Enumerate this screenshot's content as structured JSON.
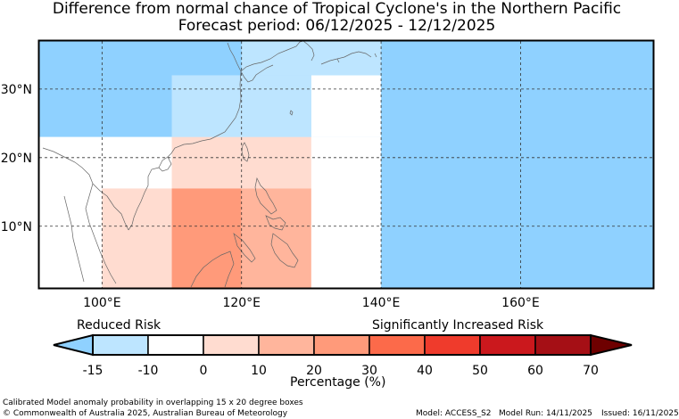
{
  "title": {
    "line1": "Difference from normal chance of Tropical Cyclone's in the Northern Pacific",
    "line2": "Forecast period: 06/12/2025 - 12/12/2025"
  },
  "map": {
    "lon_range": [
      91,
      179
    ],
    "lat_range": [
      1,
      37
    ],
    "lon_ticks": [
      {
        "lon": 100,
        "label": "100°E"
      },
      {
        "lon": 120,
        "label": "120°E"
      },
      {
        "lon": 140,
        "label": "140°E"
      },
      {
        "lon": 160,
        "label": "160°E"
      }
    ],
    "lat_ticks": [
      {
        "lat": 10,
        "label": "10°N"
      },
      {
        "lat": 20,
        "label": "20°N"
      },
      {
        "lat": 30,
        "label": "30°N"
      }
    ],
    "ocean_color": "#ffffff",
    "boxes": [
      {
        "lon": [
          91,
          140
        ],
        "lat": [
          23,
          37
        ],
        "color": "#8fd1ff"
      },
      {
        "lon": [
          91,
          110
        ],
        "lat": [
          1,
          23
        ],
        "color": "#ffffff"
      },
      {
        "lon": [
          110,
          130
        ],
        "lat": [
          23,
          32
        ],
        "color": "#bde5ff"
      },
      {
        "lon": [
          130,
          140
        ],
        "lat": [
          23,
          32
        ],
        "color": "#ffffff"
      },
      {
        "lon": [
          120,
          140
        ],
        "lat": [
          32,
          37
        ],
        "color": "#bde5ff"
      },
      {
        "lon": [
          100,
          110
        ],
        "lat": [
          1,
          15.5
        ],
        "color": "#ffdcd0"
      },
      {
        "lon": [
          110,
          130
        ],
        "lat": [
          15.5,
          23
        ],
        "color": "#ffdcd0"
      },
      {
        "lon": [
          110,
          120
        ],
        "lat": [
          1,
          15.5
        ],
        "color": "#ff9a7a"
      },
      {
        "lon": [
          120,
          130
        ],
        "lat": [
          1,
          15.5
        ],
        "color": "#ffb59c"
      },
      {
        "lon": [
          130,
          140
        ],
        "lat": [
          1,
          23
        ],
        "color": "#ffffff"
      },
      {
        "lon": [
          140,
          179
        ],
        "lat": [
          1,
          37
        ],
        "color": "#8fd1ff"
      }
    ]
  },
  "colorbar": {
    "left_label": "Reduced Risk",
    "right_label": "Significantly Increased Risk",
    "xlabel": "Percentage (%)",
    "ticks": [
      "-15",
      "-10",
      "0",
      "10",
      "20",
      "30",
      "40",
      "50",
      "60",
      "70"
    ],
    "low_extend_color": "#8fd1ff",
    "high_extend_color": "#6e0000",
    "bins": [
      "#bde5ff",
      "#ffffff",
      "#ffdcd0",
      "#ffb59c",
      "#ff9a7a",
      "#fc6a4a",
      "#ef3b2c",
      "#cb181d",
      "#a50f15"
    ]
  },
  "footer": {
    "line1": "Calibrated Model anomaly probability in overlapping 15 x 20 degree boxes",
    "line2": "© Commonwealth of Australia 2025, Australian Bureau of Meteorology",
    "model": "Model: ACCESS_S2",
    "run": "Model Run: 14/11/2025",
    "issued": "Issued: 16/11/2025"
  }
}
